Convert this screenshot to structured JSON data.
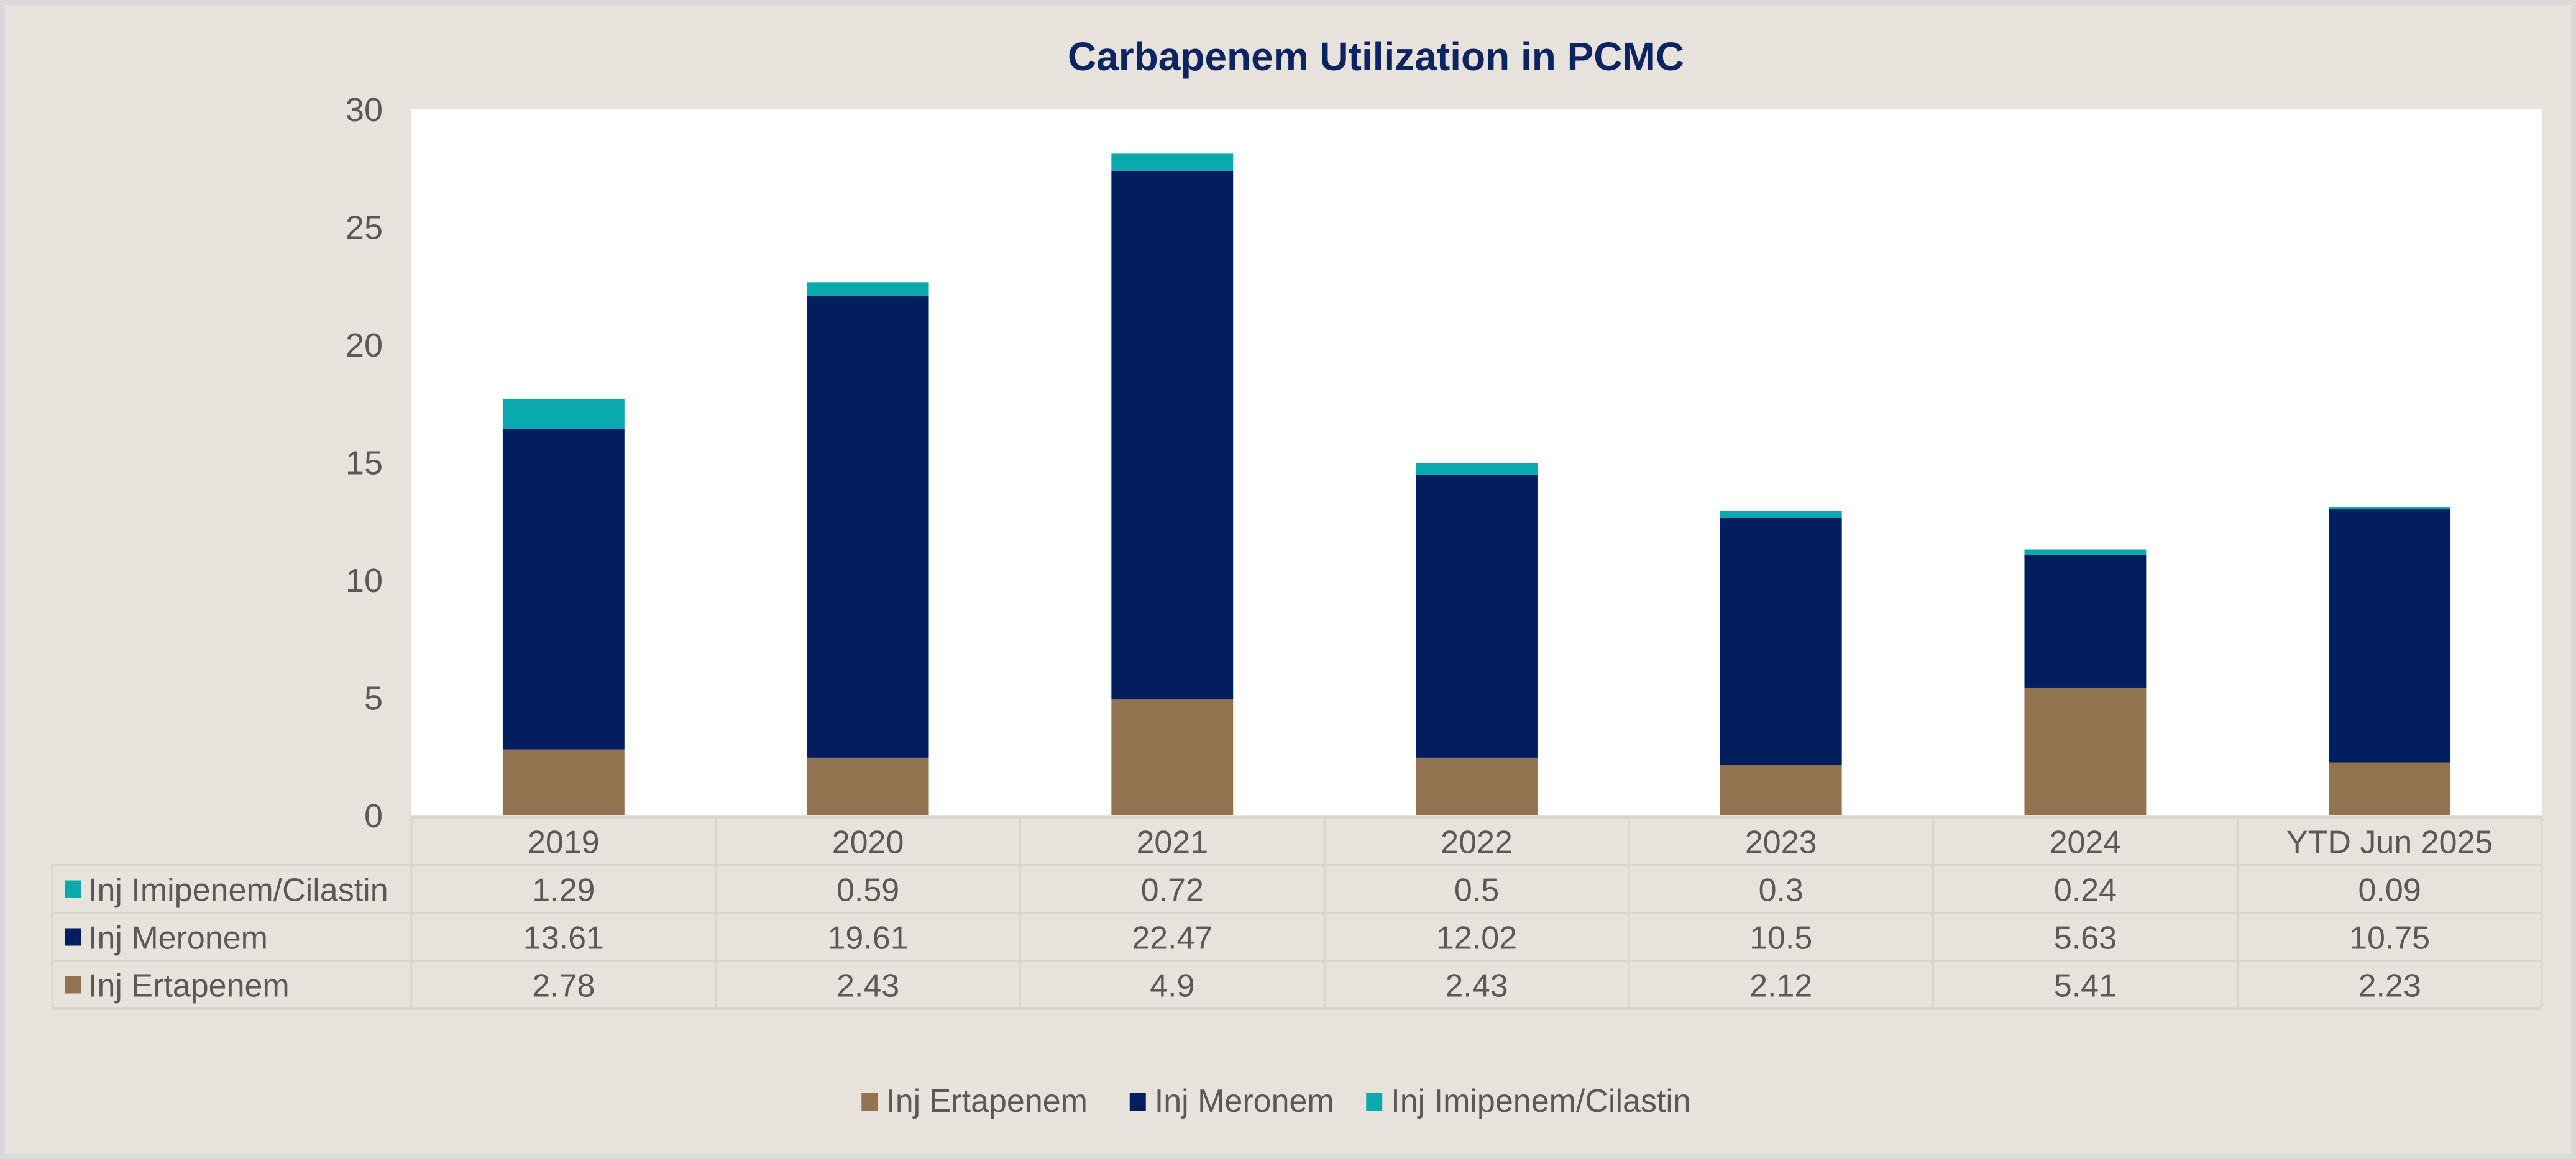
{
  "chart_data": {
    "type": "bar",
    "stacked": true,
    "title": "Carbapenem Utilization in PCMC",
    "xlabel": "",
    "ylabel": "",
    "ylim": [
      0,
      30
    ],
    "yticks": [
      "0",
      "5",
      "10",
      "15",
      "20",
      "25",
      "30"
    ],
    "grid": false,
    "legend_position": "bottom",
    "categories": [
      "2019",
      "2020",
      "2021",
      "2022",
      "2023",
      "2024",
      "YTD Jun 2025"
    ],
    "series": [
      {
        "name": "Inj Ertapenem",
        "color": "#927350",
        "values": [
          2.78,
          2.43,
          4.9,
          2.43,
          2.12,
          5.41,
          2.23
        ],
        "labels": [
          "2.78",
          "2.43",
          "4.9",
          "2.43",
          "2.12",
          "5.41",
          "2.23"
        ]
      },
      {
        "name": "Inj Meronem",
        "color": "#021e5e",
        "values": [
          13.61,
          19.61,
          22.47,
          12.02,
          10.5,
          5.63,
          10.75
        ],
        "labels": [
          "13.61",
          "19.61",
          "22.47",
          "12.02",
          "10.5",
          "5.63",
          "10.75"
        ]
      },
      {
        "name": "Inj Imipenem/Cilastin",
        "color": "#0aa9ad",
        "values": [
          1.29,
          0.59,
          0.72,
          0.5,
          0.3,
          0.24,
          0.09
        ],
        "labels": [
          "1.29",
          "0.59",
          "0.72",
          "0.5",
          "0.3",
          "0.24",
          "0.09"
        ]
      }
    ],
    "table_row_order": [
      "Inj Imipenem/Cilastin",
      "Inj Meronem",
      "Inj Ertapenem"
    ],
    "legend_order": [
      "Inj Ertapenem",
      "Inj Meronem",
      "Inj Imipenem/Cilastin"
    ]
  },
  "colors": {
    "title": "#0c2461",
    "text": "#595959",
    "plot_bg": "#ffffff",
    "frame_bg": "#e8e2dc",
    "grid_line": "#d8d4cf"
  }
}
